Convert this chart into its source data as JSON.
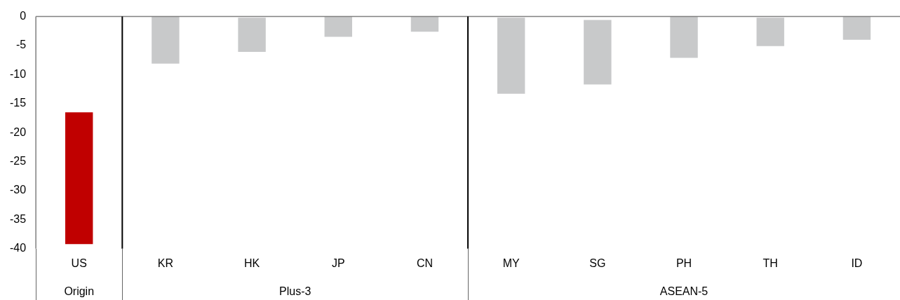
{
  "chart_data": {
    "type": "bar",
    "categories": [
      "US",
      "KR",
      "HK",
      "JP",
      "CN",
      "MY",
      "SG",
      "PH",
      "TH",
      "ID"
    ],
    "values": [
      -22.7,
      -8.1,
      -5.9,
      -3.5,
      -2.6,
      -13.1,
      -11.1,
      -7.1,
      -4.9,
      -4.0
    ],
    "base": [
      -16.5,
      0,
      -0.2,
      0,
      0,
      -0.2,
      -0.6,
      0,
      -0.2,
      0
    ],
    "colors": [
      "#c00000",
      "#c8c9ca",
      "#c8c9ca",
      "#c8c9ca",
      "#c8c9ca",
      "#c8c9ca",
      "#c8c9ca",
      "#c8c9ca",
      "#c8c9ca",
      "#c8c9ca"
    ],
    "ylim": [
      -40,
      0
    ],
    "yticks": [
      -40,
      -35,
      -30,
      -25,
      -20,
      -15,
      -10,
      -5,
      0
    ],
    "annotations": [
      "Origin",
      "Plus-3",
      "ASEAN-5"
    ],
    "grid": false,
    "legend": false
  }
}
